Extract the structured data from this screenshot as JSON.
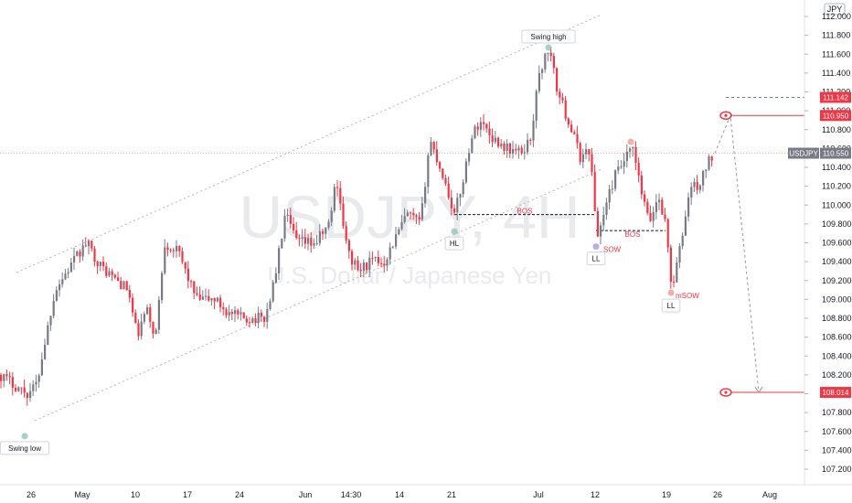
{
  "chart_data": {
    "type": "candlestick",
    "symbol": "USDJPY",
    "currency": "JPY",
    "watermark": {
      "title": "USDJPY, 4H",
      "subtitle": "U.S. Dollar / Japanese Yen"
    },
    "colors": {
      "up": "#787b86",
      "down": "#f23645",
      "annotation": "#f23645",
      "channel": "#b2b5be",
      "bos": "#131722"
    },
    "y_ticks": [
      112.0,
      111.8,
      111.6,
      111.4,
      111.2,
      111.0,
      110.8,
      110.6,
      110.4,
      110.2,
      110.0,
      109.8,
      109.6,
      109.4,
      109.2,
      109.0,
      108.8,
      108.6,
      108.4,
      108.2,
      108.0,
      107.8,
      107.6,
      107.4,
      107.2
    ],
    "ylim": [
      107.11,
      112.08
    ],
    "x_labels": [
      "26",
      "May",
      "10",
      "17",
      "24",
      "Jun",
      "14:30",
      "14",
      "21",
      "Jul",
      "12",
      "19",
      "26",
      "Aug"
    ],
    "price_labels": [
      {
        "text": "111.142",
        "value": 111.142,
        "style": "target"
      },
      {
        "text": "110.950",
        "value": 110.95,
        "style": "target"
      },
      {
        "text": "USDJPY",
        "value": 110.55,
        "style": "symbol"
      },
      {
        "text": "110.550",
        "value": 110.55,
        "style": "last"
      },
      {
        "text": "108.014",
        "value": 108.014,
        "style": "target"
      }
    ],
    "price_path": [
      [
        0,
        108.2
      ],
      [
        30,
        108.0
      ],
      [
        40,
        108.1
      ],
      [
        60,
        109.1
      ],
      [
        80,
        109.4
      ],
      [
        95,
        109.6
      ],
      [
        110,
        109.35
      ],
      [
        140,
        109.1
      ],
      [
        150,
        108.6
      ],
      [
        160,
        108.9
      ],
      [
        170,
        108.6
      ],
      [
        180,
        109.6
      ],
      [
        195,
        109.5
      ],
      [
        215,
        109.0
      ],
      [
        235,
        109.0
      ],
      [
        250,
        108.85
      ],
      [
        265,
        108.8
      ],
      [
        290,
        108.8
      ],
      [
        300,
        109.2
      ],
      [
        312,
        109.9
      ],
      [
        325,
        109.6
      ],
      [
        345,
        109.6
      ],
      [
        360,
        109.8
      ],
      [
        368,
        110.3
      ],
      [
        380,
        109.5
      ],
      [
        392,
        109.3
      ],
      [
        405,
        109.4
      ],
      [
        420,
        109.4
      ],
      [
        430,
        109.6
      ],
      [
        445,
        109.9
      ],
      [
        460,
        109.8
      ],
      [
        470,
        110.7
      ],
      [
        485,
        110.3
      ],
      [
        497,
        109.9
      ],
      [
        505,
        110.2
      ],
      [
        515,
        110.7
      ],
      [
        525,
        110.9
      ],
      [
        540,
        110.7
      ],
      [
        555,
        110.6
      ],
      [
        570,
        110.55
      ],
      [
        580,
        110.7
      ],
      [
        590,
        111.4
      ],
      [
        600,
        111.67
      ],
      [
        610,
        111.2
      ],
      [
        625,
        110.8
      ],
      [
        635,
        110.5
      ],
      [
        645,
        110.6
      ],
      [
        653,
        109.65
      ],
      [
        660,
        109.9
      ],
      [
        672,
        110.3
      ],
      [
        685,
        110.5
      ],
      [
        692,
        110.6
      ],
      [
        700,
        110.2
      ],
      [
        710,
        109.8
      ],
      [
        720,
        110.1
      ],
      [
        728,
        109.8
      ],
      [
        735,
        109.1
      ],
      [
        745,
        109.6
      ],
      [
        755,
        110.2
      ],
      [
        765,
        110.2
      ],
      [
        772,
        110.4
      ],
      [
        780,
        110.55
      ]
    ],
    "annotations": [
      {
        "text": "Swing high",
        "value": 111.67,
        "kind": "label",
        "fill": "#ffffff",
        "color": "#131722"
      },
      {
        "text": "Swing low",
        "value": 107.55,
        "kind": "label",
        "fill": "#ffffff",
        "color": "#131722"
      },
      {
        "text": "HL",
        "value": 109.72,
        "kind": "label",
        "fill": "#ffffff",
        "color": "#131722"
      },
      {
        "text": "LL",
        "value": 109.56,
        "kind": "label",
        "fill": "#ffffff",
        "color": "#131722"
      },
      {
        "text": "LL",
        "value": 109.07,
        "kind": "label",
        "fill": "#ffffff",
        "color": "#131722"
      },
      {
        "text": "BOS",
        "value": 109.9,
        "kind": "text",
        "color": "#f23645"
      },
      {
        "text": "BOS",
        "value": 109.73,
        "kind": "text",
        "color": "#f23645"
      },
      {
        "text": "SOW",
        "value": 109.56,
        "kind": "text",
        "color": "#f23645"
      },
      {
        "text": "mSOW",
        "value": 109.07,
        "kind": "text",
        "color": "#f23645"
      }
    ]
  }
}
